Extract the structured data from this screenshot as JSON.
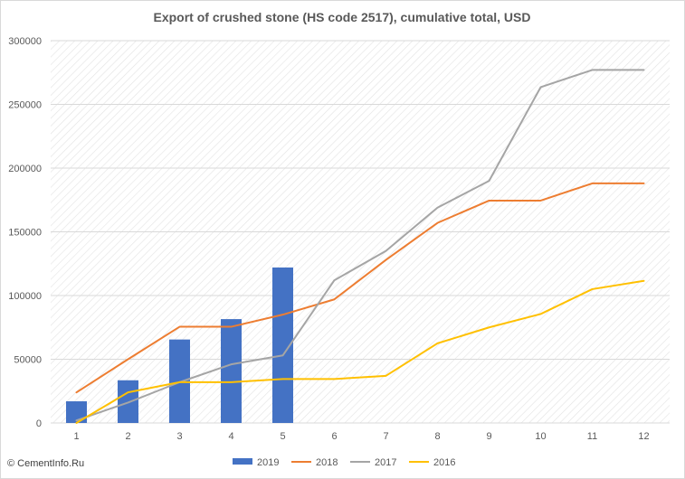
{
  "chart_data": {
    "type": "bar",
    "title": "Export of crushed stone (HS code 2517), cumulative total, USD",
    "categories": [
      "1",
      "2",
      "3",
      "4",
      "5",
      "6",
      "7",
      "8",
      "9",
      "10",
      "11",
      "12"
    ],
    "ylim": [
      0,
      300000
    ],
    "yticks": [
      "0",
      "50000",
      "100000",
      "150000",
      "200000",
      "250000",
      "300000"
    ],
    "grid": true,
    "legend_position": "bottom",
    "series": [
      {
        "name": "2019",
        "kind": "bar",
        "color": "#4472c4",
        "values": [
          17000,
          33500,
          65500,
          81500,
          122000,
          null,
          null,
          null,
          null,
          null,
          null,
          null
        ]
      },
      {
        "name": "2018",
        "kind": "line",
        "color": "#ed7d31",
        "values": [
          24000,
          50000,
          75500,
          75500,
          85000,
          97000,
          128000,
          157000,
          174500,
          174500,
          188000,
          188000
        ]
      },
      {
        "name": "2017",
        "kind": "line",
        "color": "#a5a5a5",
        "values": [
          2000,
          16000,
          32000,
          46000,
          53000,
          112000,
          135000,
          169000,
          190000,
          263500,
          277000,
          277000
        ]
      },
      {
        "name": "2016",
        "kind": "line",
        "color": "#ffc000",
        "values": [
          0,
          24000,
          32000,
          32000,
          34500,
          34500,
          37000,
          62500,
          75000,
          85500,
          105000,
          111500
        ]
      }
    ]
  },
  "credit": "© CementInfo.Ru"
}
